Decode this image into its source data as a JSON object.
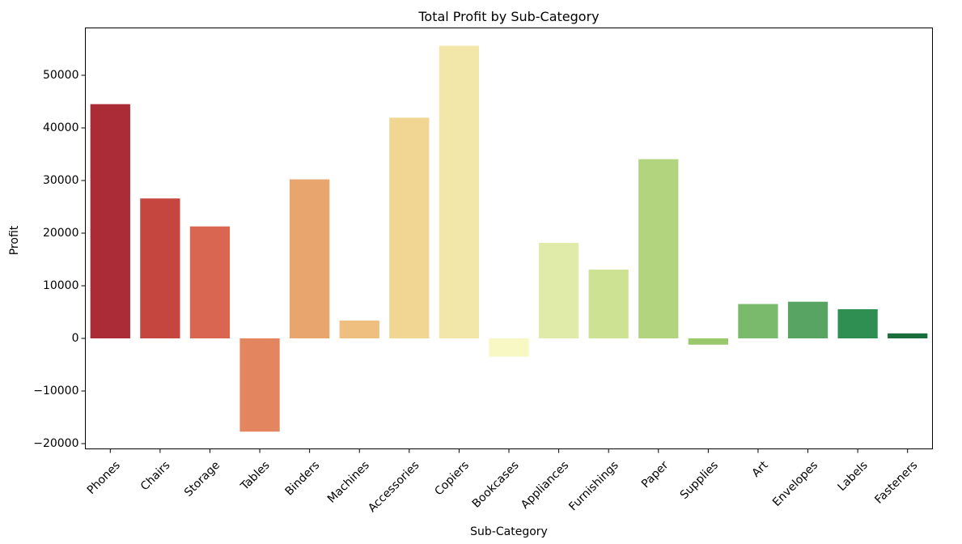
{
  "chart_data": {
    "type": "bar",
    "title": "Total Profit by Sub-Category",
    "xlabel": "Sub-Category",
    "ylabel": "Profit",
    "ylim": [
      -21000,
      59000
    ],
    "yticks": [
      -20000,
      -10000,
      0,
      10000,
      20000,
      30000,
      40000,
      50000
    ],
    "ytick_labels": [
      "−20000",
      "−10000",
      "0",
      "10000",
      "20000",
      "30000",
      "40000",
      "50000"
    ],
    "grid": false,
    "legend": "none",
    "categories": [
      "Phones",
      "Chairs",
      "Storage",
      "Tables",
      "Binders",
      "Machines",
      "Accessories",
      "Copiers",
      "Bookcases",
      "Appliances",
      "Furnishings",
      "Paper",
      "Supplies",
      "Art",
      "Envelopes",
      "Labels",
      "Fasteners"
    ],
    "values": [
      44516,
      26590,
      21279,
      -17725,
      30222,
      3385,
      41937,
      55618,
      -3473,
      18138,
      13059,
      34054,
      -1189,
      6528,
      6964,
      5546,
      950
    ],
    "colors": [
      "#ab2c37",
      "#c4463f",
      "#d86650",
      "#e3855f",
      "#e8a56e",
      "#eebf7e",
      "#f0d593",
      "#f3e6a9",
      "#f7f8c4",
      "#e1eba9",
      "#cde292",
      "#b3d47f",
      "#99c86d",
      "#7aba6c",
      "#58a563",
      "#2f8e52",
      "#1a6e3b"
    ]
  }
}
